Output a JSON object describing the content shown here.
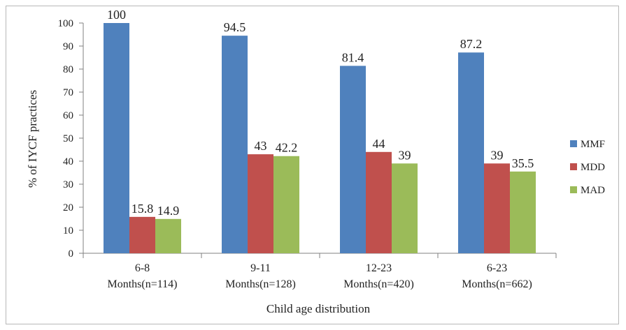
{
  "chart_data": {
    "type": "bar",
    "xlabel": "Child age distribution",
    "ylabel": "% of IYCF  practices",
    "ylim": [
      0,
      100
    ],
    "yticks": [
      0,
      10,
      20,
      30,
      40,
      50,
      60,
      70,
      80,
      90,
      100
    ],
    "categories": [
      [
        "6-8",
        "Months(n=114)"
      ],
      [
        "9-11",
        "Months(n=128)"
      ],
      [
        "12-23",
        "Months(n=420)"
      ],
      [
        "6-23",
        "Months(n=662)"
      ]
    ],
    "series": [
      {
        "name": "MMF",
        "color": "#4F81BD",
        "values": [
          100,
          94.5,
          81.4,
          87.2
        ]
      },
      {
        "name": "MDD",
        "color": "#C0504D",
        "values": [
          15.8,
          43,
          44,
          39
        ]
      },
      {
        "name": "MAD",
        "color": "#9BBB59",
        "values": [
          14.9,
          42.2,
          39,
          35.5
        ]
      }
    ],
    "data_labels": [
      [
        "100",
        "94.5",
        "81.4",
        "87.2"
      ],
      [
        "15.8",
        "43",
        "44",
        "39"
      ],
      [
        "14.9",
        "42.2",
        "39",
        "35.5"
      ]
    ],
    "legend_position": "right",
    "grid": false
  }
}
